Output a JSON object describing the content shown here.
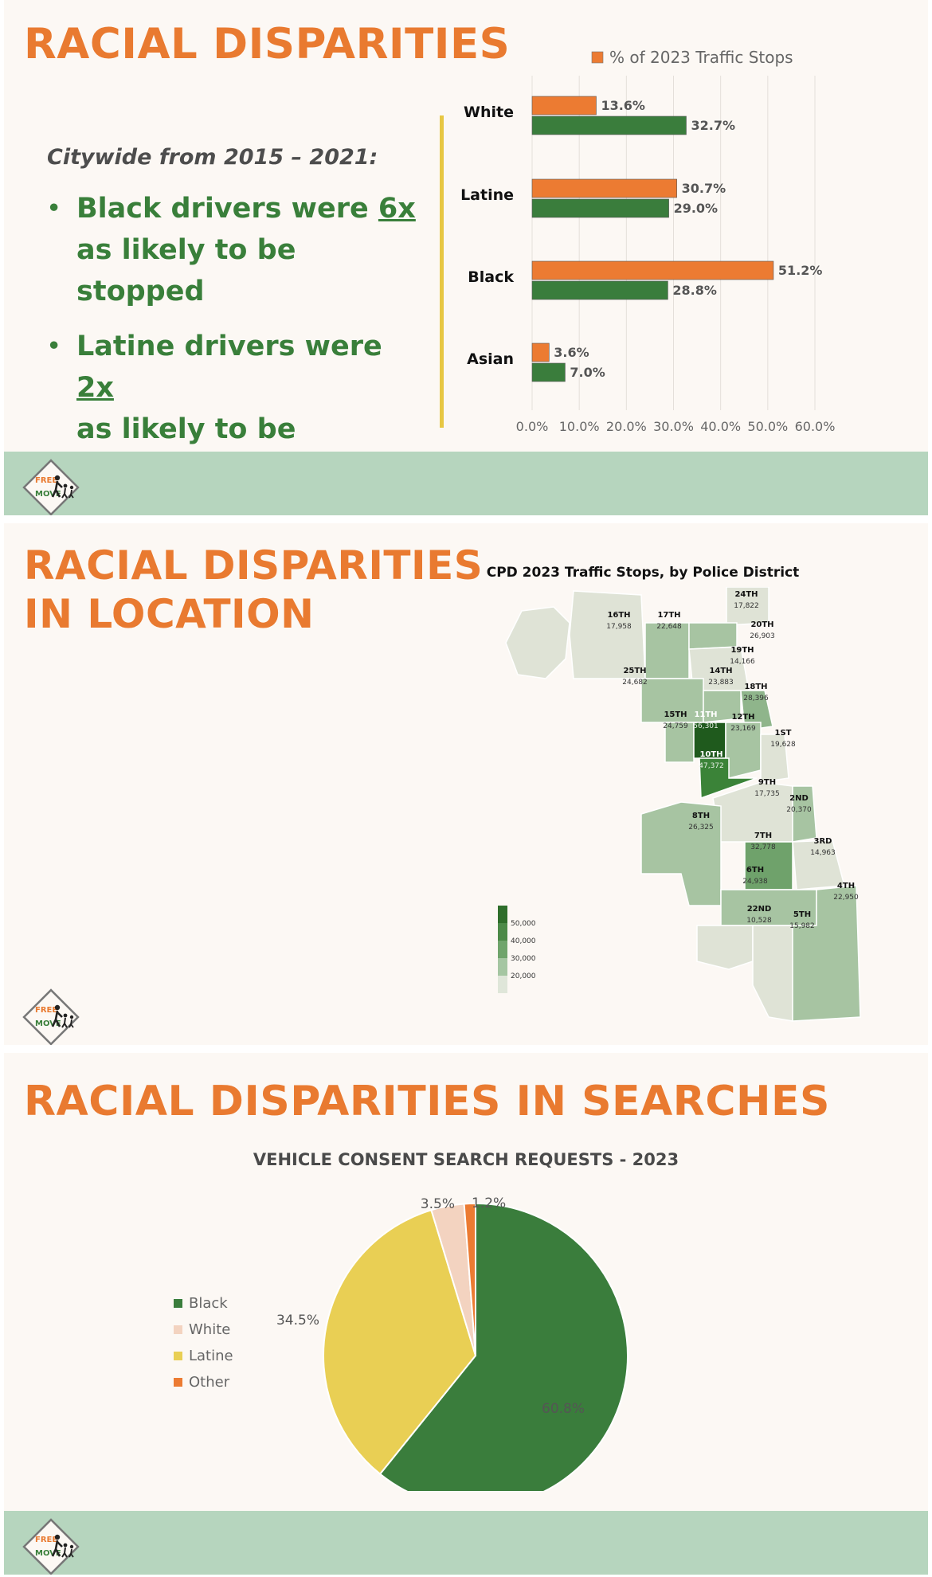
{
  "slide1": {
    "title": "RACIAL DISPARITIES",
    "subtitle": "Citywide from 2015 – 2021:",
    "bullets": [
      {
        "pre": "Black drivers were ",
        "mult": "6x",
        "line2": "as likely to be stopped"
      },
      {
        "pre": "Latine drivers were ",
        "mult": "2x",
        "line2": "as likely to be stopped"
      }
    ],
    "logo": {
      "line1": "FREE",
      "line2": "MOVE"
    }
  },
  "slide2": {
    "title_line1": "RACIAL DISPARITIES",
    "title_line2": "IN LOCATION",
    "map_title": "CPD 2023 Traffic Stops, by Police District",
    "districts": [
      {
        "name": "24TH",
        "stops": "17,822"
      },
      {
        "name": "16TH",
        "stops": "17,958"
      },
      {
        "name": "17TH",
        "stops": "22,648"
      },
      {
        "name": "20TH",
        "stops": "26,903"
      },
      {
        "name": "19TH",
        "stops": "14,166"
      },
      {
        "name": "25TH",
        "stops": "24,682"
      },
      {
        "name": "14TH",
        "stops": "23,883"
      },
      {
        "name": "18TH",
        "stops": "28,396"
      },
      {
        "name": "15TH",
        "stops": "24,759"
      },
      {
        "name": "11TH",
        "stops": "56,301"
      },
      {
        "name": "12TH",
        "stops": "23,169"
      },
      {
        "name": "1ST",
        "stops": "19,628"
      },
      {
        "name": "10TH",
        "stops": "47,372"
      },
      {
        "name": "9TH",
        "stops": "17,735"
      },
      {
        "name": "2ND",
        "stops": "20,370"
      },
      {
        "name": "8TH",
        "stops": "26,325"
      },
      {
        "name": "7TH",
        "stops": "32,778"
      },
      {
        "name": "3RD",
        "stops": "14,963"
      },
      {
        "name": "6TH",
        "stops": "24,938"
      },
      {
        "name": "22ND",
        "stops": "10,528"
      },
      {
        "name": "5TH",
        "stops": "15,982"
      },
      {
        "name": "4TH",
        "stops": "22,950"
      }
    ],
    "scale_labels": [
      "50,000",
      "40,000",
      "30,000",
      "20,000"
    ],
    "scale_colors": [
      "#2f6e2b",
      "#4c8a48",
      "#6fa46b",
      "#a5c6a2",
      "#dfe6d9"
    ]
  },
  "slide3": {
    "title": "RACIAL DISPARITIES IN SEARCHES"
  },
  "chart_data": [
    {
      "type": "bar",
      "orientation": "horizontal",
      "categories": [
        "White",
        "Latine",
        "Black",
        "Asian"
      ],
      "series": [
        {
          "name": "% of 2023 Traffic Stops",
          "values": [
            13.6,
            30.7,
            51.2,
            3.6
          ],
          "color": "#ec7b32"
        },
        {
          "values": [
            32.7,
            29.0,
            28.8,
            7.0
          ],
          "color": "#3a7d3c"
        }
      ],
      "data_labels": [
        [
          "13.6%",
          "30.7%",
          "51.2%",
          "3.6%"
        ],
        [
          "32.7%",
          "29.0%",
          "28.8%",
          "7.0%"
        ]
      ],
      "x_ticks": [
        "0.0%",
        "10.0%",
        "20.0%",
        "30.0%",
        "40.0%",
        "50.0%",
        "60.0%"
      ],
      "xlim": [
        0,
        60
      ],
      "grid": true,
      "legend": "top"
    },
    {
      "type": "pie",
      "title": "VEHICLE CONSENT SEARCH REQUESTS - 2023",
      "categories": [
        "Black",
        "White",
        "Latine",
        "Other"
      ],
      "values": [
        60.8,
        3.5,
        34.5,
        1.2
      ],
      "labels": [
        "60.8%",
        "3.5%",
        "34.5%",
        "1.2%"
      ],
      "colors": [
        "#3a7d3c",
        "#f3d3c0",
        "#e9cf54",
        "#ec7b32"
      ],
      "legend": "left"
    }
  ]
}
